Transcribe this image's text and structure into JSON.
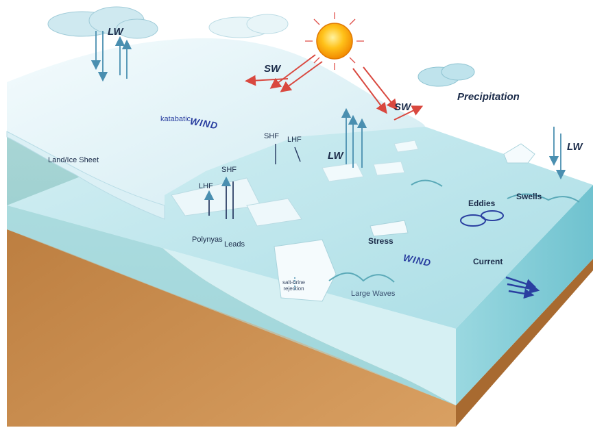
{
  "labels": {
    "lw_top": "LW",
    "sw_left": "SW",
    "sw_right": "SW",
    "precipitation": "Precipitation",
    "lw_right": "LW",
    "lw_mid": "LW",
    "katabatic": "katabatic",
    "wind_katabatic": "WIND",
    "land_ice_sheet": "Land/Ice Sheet",
    "shf_upper": "SHF",
    "lhf_upper": "LHF",
    "shf_lower": "SHF",
    "lhf_lower": "LHF",
    "polynyas": "Polynyas",
    "leads": "Leads",
    "eddies": "Eddies",
    "swells": "Swells",
    "stress": "Stress",
    "wind_stress": "WIND",
    "current": "Current",
    "salt_brine_line1": "salt-brine",
    "salt_brine_line2": "rejection",
    "large_waves": "Large Waves"
  },
  "colors": {
    "sky": "#ffffff",
    "ice": "#e4f4f8",
    "ocean_top": "#bfe6ec",
    "ocean_side": "#8fd2dc",
    "earth": "#c48a4a",
    "sun": "#ffb300",
    "sw_arrow": "#e0504a",
    "lw_arrow": "#4a8fb0",
    "current_arrow": "#2a3fa0"
  }
}
